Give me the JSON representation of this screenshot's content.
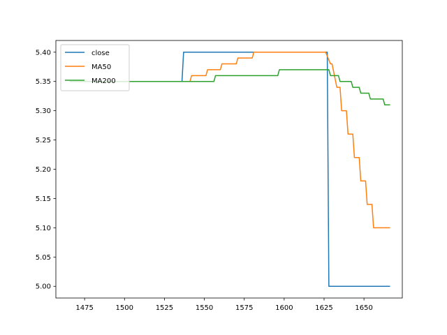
{
  "chart_data": {
    "type": "line",
    "title": "",
    "xlabel": "",
    "ylabel": "",
    "xlim": [
      1457,
      1674
    ],
    "ylim": [
      4.98,
      5.42
    ],
    "xticks": [
      1475,
      1500,
      1525,
      1550,
      1575,
      1600,
      1625,
      1650
    ],
    "yticks": [
      5.0,
      5.05,
      5.1,
      5.15,
      5.2,
      5.25,
      5.3,
      5.35,
      5.4
    ],
    "xtick_labels": [
      "1475",
      "1500",
      "1525",
      "1550",
      "1575",
      "1600",
      "1625",
      "1650"
    ],
    "ytick_labels": [
      "5.00",
      "5.05",
      "5.10",
      "5.15",
      "5.20",
      "5.25",
      "5.30",
      "5.35",
      "5.40"
    ],
    "grid": false,
    "legend_position": "upper-left",
    "series": [
      {
        "name": "close",
        "color": "#1f77b4",
        "x": [
          1466,
          1536,
          1537,
          1627,
          1628,
          1666
        ],
        "y": [
          5.35,
          5.35,
          5.4,
          5.4,
          5.0,
          5.0
        ]
      },
      {
        "name": "MA50",
        "color": "#ff7f0e",
        "x": [
          1466,
          1541,
          1542,
          1551,
          1552,
          1560,
          1561,
          1570,
          1571,
          1580,
          1581,
          1626,
          1629,
          1630,
          1633,
          1635,
          1636,
          1639,
          1640,
          1643,
          1644,
          1647,
          1648,
          1651,
          1652,
          1655,
          1656,
          1659,
          1660,
          1663,
          1664,
          1666
        ],
        "y": [
          5.35,
          5.35,
          5.36,
          5.36,
          5.37,
          5.37,
          5.38,
          5.38,
          5.39,
          5.39,
          5.4,
          5.4,
          5.38,
          5.38,
          5.34,
          5.34,
          5.3,
          5.3,
          5.26,
          5.26,
          5.22,
          5.22,
          5.18,
          5.18,
          5.14,
          5.14,
          5.1,
          5.1,
          5.1,
          5.1,
          5.1,
          5.1
        ]
      },
      {
        "name": "MA200",
        "color": "#2ca02c",
        "x": [
          1466,
          1556,
          1557,
          1596,
          1597,
          1628,
          1629,
          1634,
          1635,
          1638,
          1639,
          1642,
          1643,
          1647,
          1648,
          1653,
          1654,
          1658,
          1659,
          1662,
          1663,
          1666
        ],
        "y": [
          5.35,
          5.35,
          5.36,
          5.36,
          5.37,
          5.37,
          5.36,
          5.36,
          5.35,
          5.35,
          5.35,
          5.35,
          5.34,
          5.34,
          5.33,
          5.33,
          5.32,
          5.32,
          5.32,
          5.32,
          5.31,
          5.31
        ]
      }
    ]
  }
}
